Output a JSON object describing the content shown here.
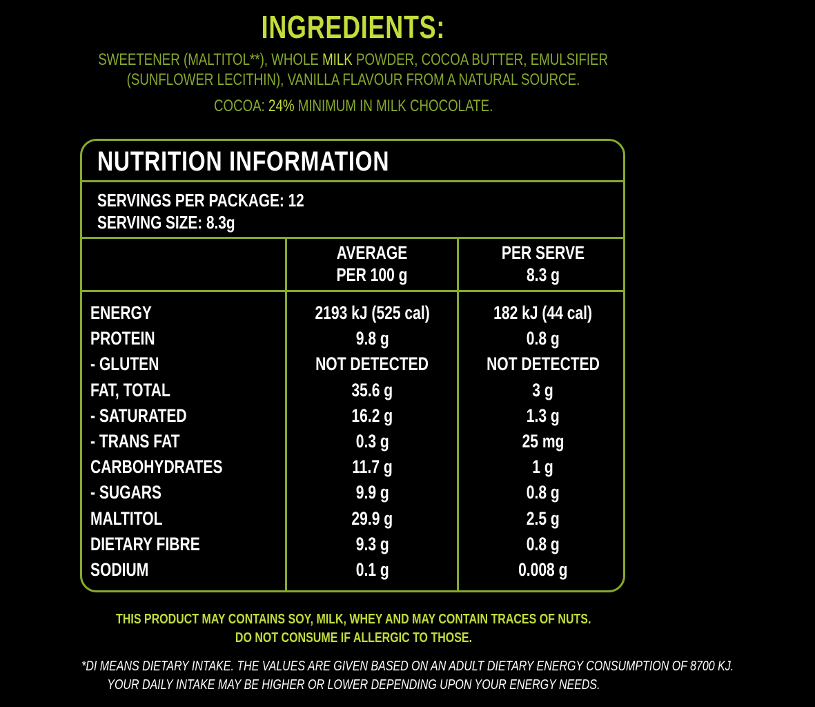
{
  "heading": "INGREDIENTS:",
  "ingredients": {
    "line1_a": "SWEETENER (MALTITOL**), WHOLE ",
    "line1_hl": "MILK",
    "line1_b": " POWDER, COCOA BUTTER, EMULSIFIER",
    "line2": "(SUNFLOWER LECITHIN), VANILLA FLAVOUR FROM A NATURAL SOURCE.",
    "cocoa_a": "COCOA: ",
    "cocoa_hl": "24%",
    "cocoa_b": " MINIMUM IN MILK CHOCOLATE."
  },
  "nutrition": {
    "title": "NUTRITION INFORMATION",
    "servings_per_package": "SERVINGS PER PACKAGE: 12",
    "serving_size": "SERVING SIZE: 8.3g",
    "col_avg_line1": "AVERAGE",
    "col_avg_line2": "PER 100 g",
    "col_serve_line1": "PER SERVE",
    "col_serve_line2": "8.3 g",
    "rows": [
      {
        "name": "ENERGY",
        "avg": "2193 kJ (525 cal)",
        "serve": "182 kJ (44 cal)"
      },
      {
        "name": "PROTEIN",
        "avg": "9.8 g",
        "serve": "0.8 g"
      },
      {
        "name": "- GLUTEN",
        "avg": "NOT DETECTED",
        "serve": "NOT DETECTED"
      },
      {
        "name": "FAT, TOTAL",
        "avg": "35.6 g",
        "serve": "3 g"
      },
      {
        "name": "- SATURATED",
        "avg": "16.2 g",
        "serve": "1.3 g"
      },
      {
        "name": "- TRANS FAT",
        "avg": "0.3 g",
        "serve": "25 mg"
      },
      {
        "name": "CARBOHYDRATES",
        "avg": "11.7 g",
        "serve": "1 g"
      },
      {
        "name": "- SUGARS",
        "avg": "9.9 g",
        "serve": "0.8 g"
      },
      {
        "name": "MALTITOL",
        "avg": "29.9 g",
        "serve": "2.5 g"
      },
      {
        "name": "DIETARY FIBRE",
        "avg": "9.3 g",
        "serve": "0.8 g"
      },
      {
        "name": "SODIUM",
        "avg": "0.1 g",
        "serve": "0.008 g"
      }
    ]
  },
  "allergy": {
    "line1": "THIS PRODUCT MAY CONTAINS SOY, MILK, WHEY AND MAY CONTAIN TRACES OF NUTS.",
    "line2": "DO NOT CONSUME IF ALLERGIC TO THOSE."
  },
  "footnote": {
    "line1": "*DI MEANS DIETARY INTAKE. THE VALUES ARE GIVEN BASED ON AN ADULT DIETARY ENERGY CONSUMPTION OF 8700 KJ.",
    "line2": "YOUR DAILY INTAKE MAY BE HIGHER OR LOWER DEPENDING UPON YOUR ENERGY NEEDS."
  },
  "colors": {
    "background": "#000000",
    "accent_bright": "#c4dc3c",
    "accent_olive": "#87a92e",
    "text": "#ffffff"
  }
}
